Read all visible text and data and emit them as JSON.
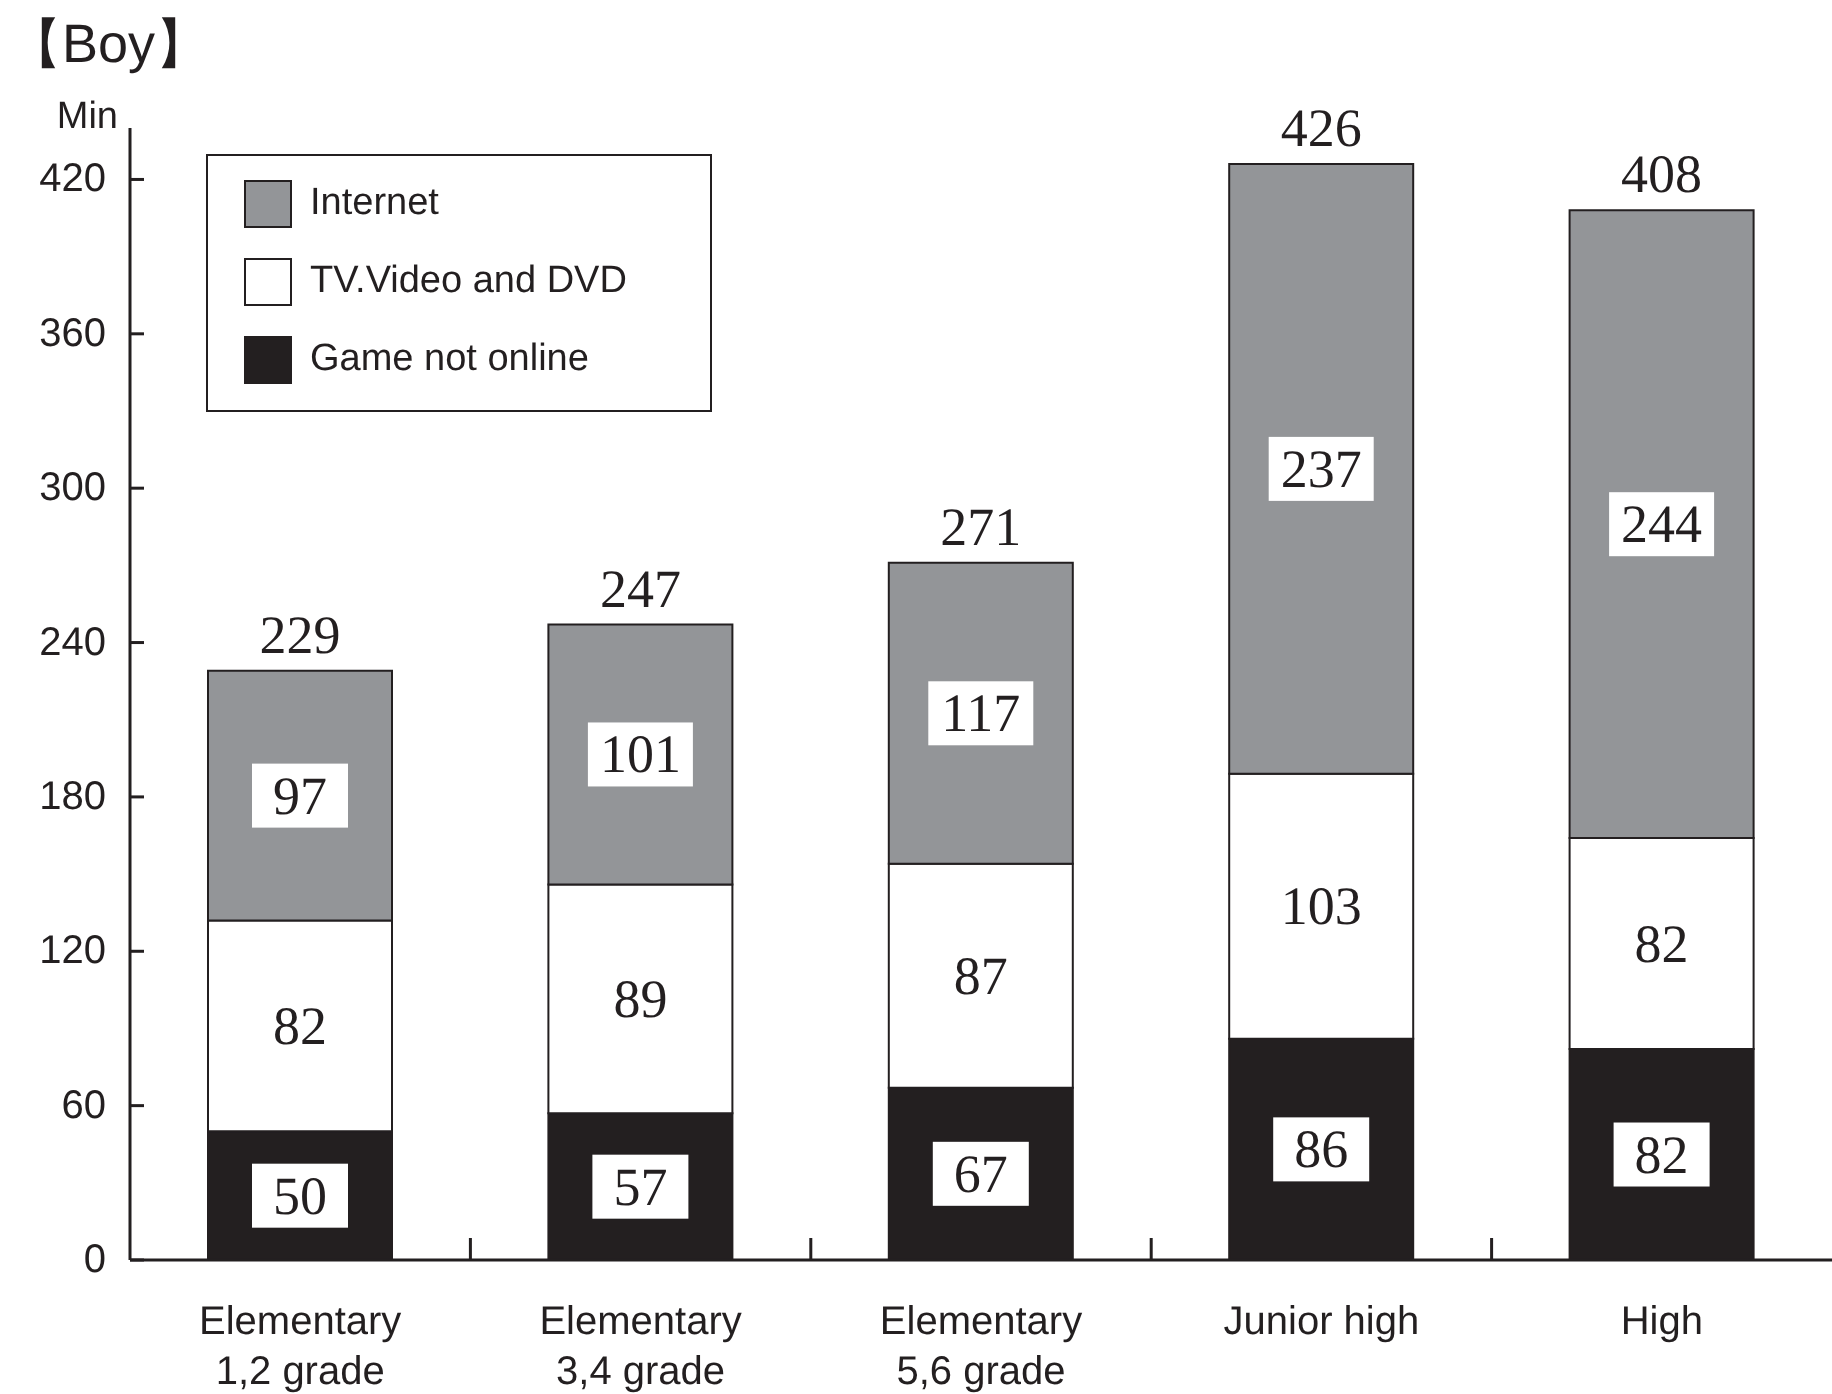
{
  "chart_data": {
    "type": "bar",
    "title": "【Boy】",
    "ylabel": "Min",
    "categories": [
      "Elementary 1,2 grade",
      "Elementary 3,4 grade",
      "Elementary 5,6 grade",
      "Junior high",
      "High"
    ],
    "series": [
      {
        "name": "Game not online",
        "color": "#231f20",
        "values": [
          50,
          57,
          67,
          86,
          82
        ]
      },
      {
        "name": "TV.Video and DVD",
        "color": "#ffffff",
        "values": [
          82,
          89,
          87,
          103,
          82
        ]
      },
      {
        "name": "Internet",
        "color": "#939598",
        "values": [
          97,
          101,
          117,
          237,
          244
        ]
      }
    ],
    "stacked": true,
    "ylim": [
      0,
      440
    ],
    "yticks": [
      0,
      60,
      120,
      180,
      240,
      300,
      360,
      420
    ],
    "data_labels": true,
    "totals": [
      "229",
      "247",
      "271",
      "426",
      "408"
    ],
    "legend": "top left"
  }
}
